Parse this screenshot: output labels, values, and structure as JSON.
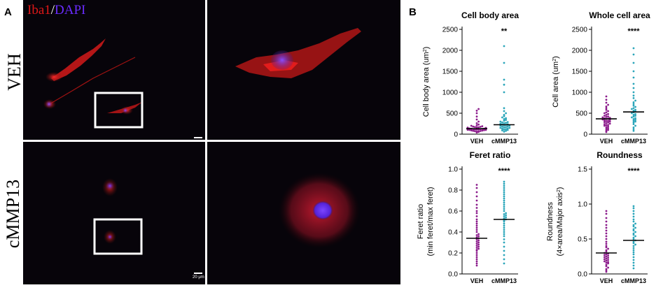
{
  "panels": {
    "a_label": "A",
    "b_label": "B"
  },
  "micrographs": {
    "stain_label_1": "Iba1",
    "stain_sep": "/",
    "stain_label_2": "DAPI",
    "row1_label": "VEH",
    "row2_label": "cMMP13",
    "scale_bar_label": "20 μm",
    "colors": {
      "iba1": "#e01818",
      "dapi": "#6a2cff",
      "background": "#07040a"
    }
  },
  "chart_data": [
    {
      "type": "scatter",
      "title": "Cell body area",
      "ylabel_line1": "Cell body area (um",
      "ylabel_sup": "2",
      "ylabel_line2": "",
      "categories": [
        "VEH",
        "cMMP13"
      ],
      "yticks": [
        0,
        500,
        1000,
        1500,
        2000,
        2500
      ],
      "ylim": [
        0,
        2500
      ],
      "means": [
        130,
        225
      ],
      "significance": "**",
      "colors": [
        "#8b1a8b",
        "#2ba6ba"
      ],
      "series": [
        {
          "category": "VEH",
          "values": [
            40,
            55,
            60,
            65,
            70,
            75,
            80,
            85,
            90,
            95,
            100,
            100,
            105,
            110,
            110,
            115,
            120,
            120,
            125,
            130,
            130,
            135,
            140,
            140,
            145,
            150,
            150,
            155,
            160,
            165,
            170,
            175,
            180,
            190,
            200,
            210,
            230,
            260,
            300,
            350,
            420,
            500,
            560,
            600
          ]
        },
        {
          "category": "cMMP13",
          "values": [
            60,
            80,
            90,
            100,
            110,
            120,
            130,
            140,
            150,
            150,
            160,
            170,
            180,
            190,
            200,
            200,
            210,
            220,
            230,
            240,
            250,
            260,
            270,
            280,
            290,
            300,
            320,
            340,
            360,
            380,
            400,
            430,
            460,
            500,
            550,
            620,
            1000,
            1180,
            1300,
            1700,
            2100
          ]
        }
      ]
    },
    {
      "type": "scatter",
      "title": "Whole cell area",
      "ylabel_line1": "Cell area (um",
      "ylabel_sup": "2",
      "ylabel_line2": "",
      "categories": [
        "VEH",
        "cMMP13"
      ],
      "yticks": [
        0,
        500,
        1000,
        1500,
        2000,
        2500
      ],
      "ylim": [
        0,
        2500
      ],
      "means": [
        365,
        530
      ],
      "significance": "****",
      "colors": [
        "#8b1a8b",
        "#2ba6ba"
      ],
      "series": [
        {
          "category": "VEH",
          "values": [
            50,
            80,
            100,
            120,
            140,
            160,
            180,
            200,
            210,
            220,
            240,
            250,
            260,
            280,
            290,
            300,
            310,
            320,
            330,
            340,
            350,
            360,
            370,
            380,
            390,
            400,
            410,
            420,
            440,
            460,
            480,
            500,
            520,
            550,
            580,
            620,
            660,
            700,
            750,
            820,
            900
          ]
        },
        {
          "category": "cMMP13",
          "values": [
            80,
            120,
            160,
            200,
            240,
            280,
            300,
            320,
            340,
            360,
            380,
            400,
            420,
            440,
            460,
            480,
            500,
            520,
            540,
            560,
            580,
            600,
            620,
            650,
            680,
            720,
            760,
            800,
            860,
            920,
            1000,
            1100,
            1200,
            1350,
            1500,
            1700,
            1900,
            2050
          ]
        }
      ]
    },
    {
      "type": "scatter",
      "title": "Feret ratio",
      "ylabel_line1": "Feret ratio",
      "ylabel_sup": "",
      "ylabel_line2": "(min feret/max feret)",
      "categories": [
        "VEH",
        "cMMP13"
      ],
      "yticks": [
        0.0,
        0.2,
        0.4,
        0.6,
        0.8,
        1.0
      ],
      "ylim": [
        0,
        1.0
      ],
      "means": [
        0.34,
        0.52
      ],
      "significance": "****",
      "colors": [
        "#8b1a8b",
        "#2ba6ba"
      ],
      "series": [
        {
          "category": "VEH",
          "values": [
            0.08,
            0.1,
            0.12,
            0.14,
            0.16,
            0.18,
            0.2,
            0.22,
            0.23,
            0.24,
            0.25,
            0.26,
            0.27,
            0.28,
            0.29,
            0.3,
            0.31,
            0.32,
            0.33,
            0.34,
            0.35,
            0.36,
            0.37,
            0.38,
            0.4,
            0.42,
            0.44,
            0.46,
            0.48,
            0.5,
            0.52,
            0.55,
            0.58,
            0.6,
            0.63,
            0.66,
            0.7,
            0.74,
            0.78,
            0.82,
            0.85
          ]
        },
        {
          "category": "cMMP13",
          "values": [
            0.1,
            0.14,
            0.18,
            0.22,
            0.26,
            0.3,
            0.33,
            0.36,
            0.38,
            0.4,
            0.42,
            0.44,
            0.46,
            0.48,
            0.5,
            0.51,
            0.52,
            0.53,
            0.54,
            0.55,
            0.56,
            0.57,
            0.58,
            0.6,
            0.62,
            0.64,
            0.66,
            0.68,
            0.7,
            0.72,
            0.74,
            0.76,
            0.78,
            0.8,
            0.82,
            0.84,
            0.86,
            0.88
          ]
        }
      ]
    },
    {
      "type": "scatter",
      "title": "Roundness",
      "ylabel_line1": "Roundness",
      "ylabel_sup": "",
      "ylabel_line2": "(4×area/Major axis",
      "ylabel_sup2": "2",
      "categories": [
        "VEH",
        "cMMP13"
      ],
      "yticks": [
        0.0,
        0.5,
        1.0,
        1.5
      ],
      "ylim": [
        0,
        1.5
      ],
      "means": [
        0.3,
        0.48
      ],
      "significance": "****",
      "colors": [
        "#8b1a8b",
        "#2ba6ba"
      ],
      "series": [
        {
          "category": "VEH",
          "values": [
            0.03,
            0.05,
            0.07,
            0.09,
            0.11,
            0.13,
            0.15,
            0.16,
            0.17,
            0.18,
            0.19,
            0.2,
            0.21,
            0.22,
            0.23,
            0.24,
            0.25,
            0.26,
            0.27,
            0.28,
            0.29,
            0.3,
            0.32,
            0.34,
            0.36,
            0.38,
            0.4,
            0.43,
            0.46,
            0.5,
            0.54,
            0.58,
            0.62,
            0.66,
            0.7,
            0.75,
            0.8,
            0.86,
            0.9
          ]
        },
        {
          "category": "cMMP13",
          "values": [
            0.08,
            0.12,
            0.16,
            0.2,
            0.24,
            0.28,
            0.31,
            0.34,
            0.37,
            0.4,
            0.42,
            0.44,
            0.46,
            0.48,
            0.5,
            0.52,
            0.54,
            0.56,
            0.58,
            0.6,
            0.62,
            0.64,
            0.66,
            0.68,
            0.7,
            0.72,
            0.75,
            0.78,
            0.82,
            0.86,
            0.9,
            0.94,
            0.97
          ]
        }
      ]
    }
  ]
}
